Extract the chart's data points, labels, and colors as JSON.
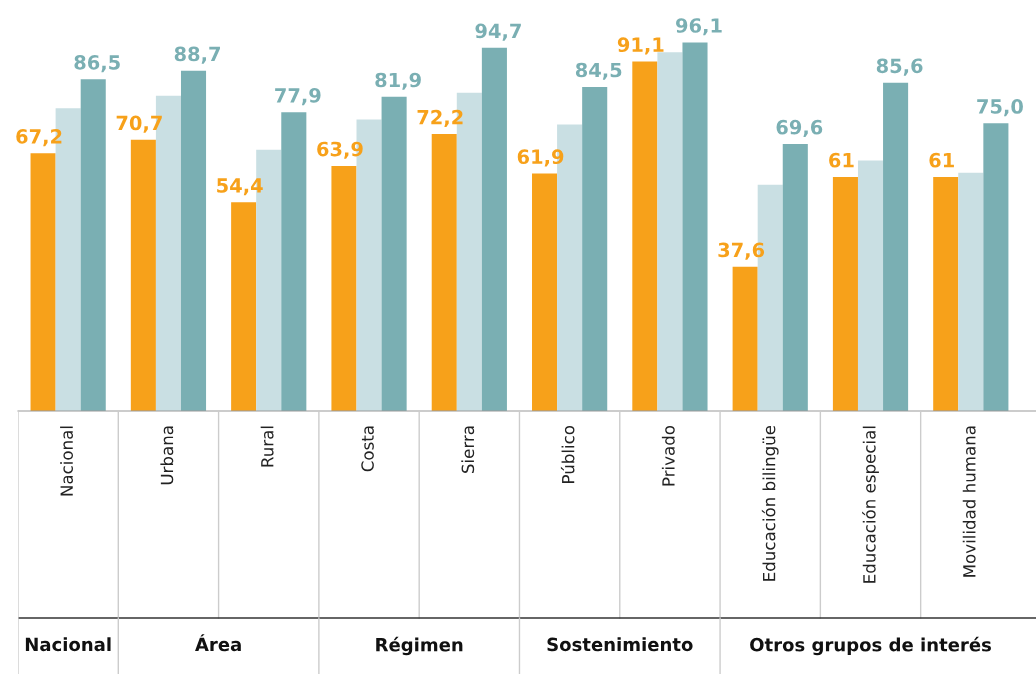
{
  "chart_data": {
    "type": "bar",
    "categories": [
      "Nacional",
      "Urbana",
      "Rural",
      "Costa",
      "Sierra",
      "Público",
      "Privado",
      "Educación bilingüe",
      "Educación especial",
      "Movilidad humana"
    ],
    "series": [
      {
        "color": "#f7a11a",
        "values": [
          67.2,
          70.7,
          54.4,
          63.9,
          72.2,
          61.9,
          91.1,
          37.6,
          61,
          61
        ],
        "value_labels": [
          "67,2",
          "70,7",
          "54,4",
          "63,9",
          "72,2",
          "61,9",
          "91,1",
          "37,6",
          "61",
          "61"
        ]
      },
      {
        "color": "#c9dfe3",
        "values": [
          78.9,
          82.2,
          68.1,
          76.0,
          83.0,
          74.7,
          93.5,
          59.0,
          65.3,
          62.1
        ]
      },
      {
        "color": "#7aafb3",
        "values": [
          86.5,
          88.7,
          77.9,
          81.9,
          94.7,
          84.5,
          96.1,
          69.6,
          85.6,
          75.0
        ],
        "value_labels": [
          "86,5",
          "88,7",
          "77,9",
          "81,9",
          "94,7",
          "84,5",
          "96,1",
          "69,6",
          "85,6",
          "75,0"
        ]
      }
    ],
    "annotations": [
      "Nacional",
      "Área",
      "Régimen",
      "Sostenimiento",
      "Otros grupos de interés"
    ]
  }
}
